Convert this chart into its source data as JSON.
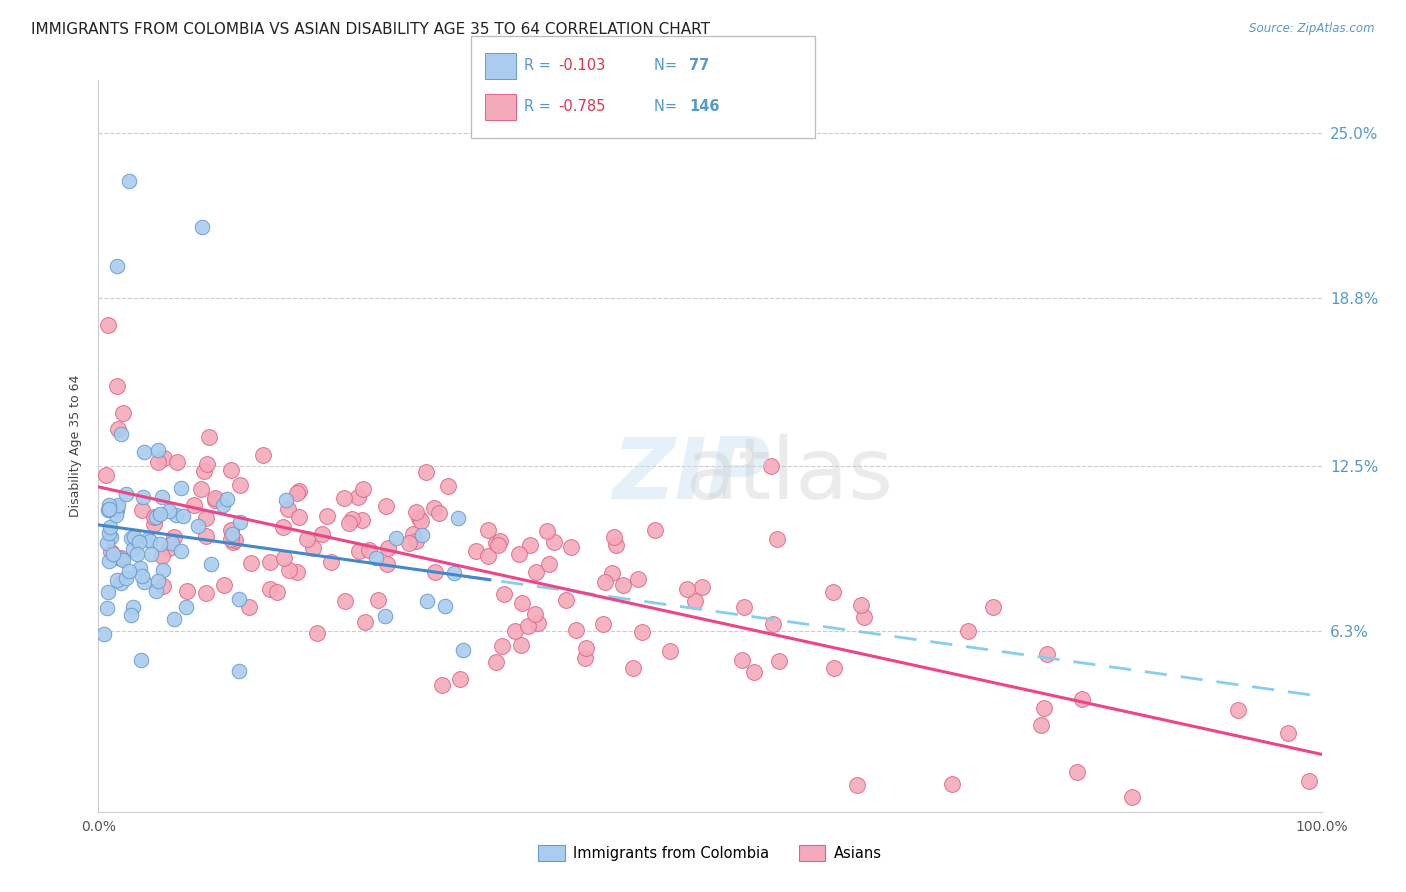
{
  "title": "IMMIGRANTS FROM COLOMBIA VS ASIAN DISABILITY AGE 35 TO 64 CORRELATION CHART",
  "source": "Source: ZipAtlas.com",
  "ylabel": "Disability Age 35 to 64",
  "yticks": [
    "25.0%",
    "18.8%",
    "12.5%",
    "6.3%"
  ],
  "ytick_vals": [
    0.25,
    0.188,
    0.125,
    0.063
  ],
  "xlim": [
    0.0,
    1.0
  ],
  "ylim": [
    -0.005,
    0.27
  ],
  "legend": {
    "r_colombia": "-0.103",
    "n_colombia": "77",
    "r_asian": "-0.785",
    "n_asian": "146"
  },
  "colombia_color": "#aaccee",
  "colombia_edge": "#6699cc",
  "asian_color": "#f4aabb",
  "asian_edge": "#dd6688",
  "background_color": "#ffffff",
  "title_fontsize": 11,
  "axis_label_fontsize": 9,
  "tick_fontsize": 10
}
